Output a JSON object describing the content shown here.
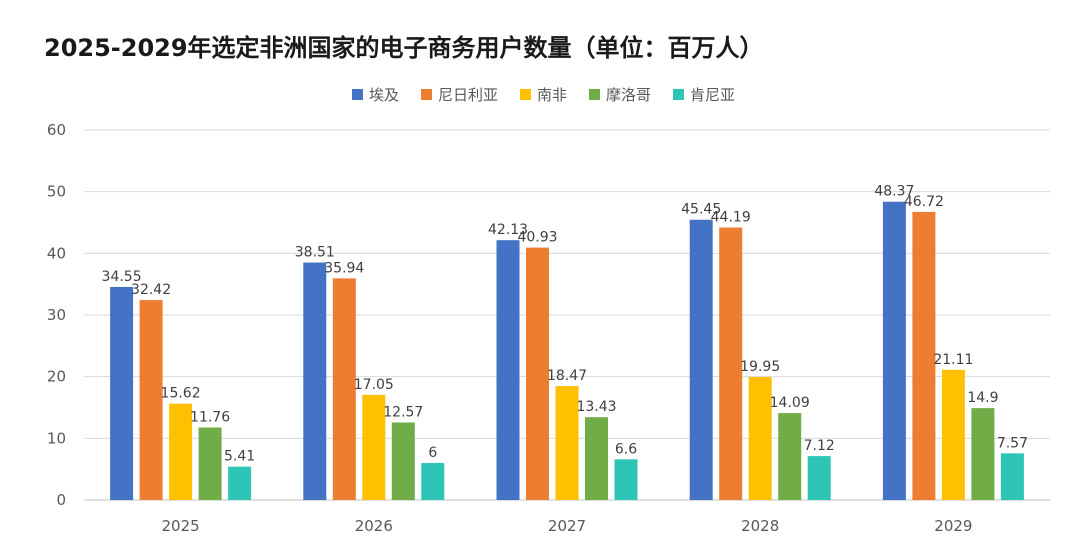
{
  "chart_data": {
    "type": "bar",
    "title": "2025-2029年选定非洲国家的电子商务用户数量（单位：百万人）",
    "categories": [
      "2025",
      "2026",
      "2027",
      "2028",
      "2029"
    ],
    "series": [
      {
        "name": "埃及",
        "color": "#4472C4",
        "values": [
          34.55,
          38.51,
          42.13,
          45.45,
          48.37
        ]
      },
      {
        "name": "尼日利亚",
        "color": "#ED7D31",
        "values": [
          32.42,
          35.94,
          40.93,
          44.19,
          46.72
        ]
      },
      {
        "name": "南非",
        "color": "#FFC000",
        "values": [
          15.62,
          17.05,
          18.47,
          19.95,
          21.11
        ]
      },
      {
        "name": "摩洛哥",
        "color": "#70AD47",
        "values": [
          11.76,
          12.57,
          13.43,
          14.09,
          14.9
        ]
      },
      {
        "name": "肯尼亚",
        "color": "#2EC4B6",
        "values": [
          5.41,
          6,
          6.6,
          7.12,
          7.57
        ]
      }
    ],
    "ylim": [
      0,
      60
    ],
    "yticks": [
      "0",
      "10",
      "20",
      "30",
      "40",
      "50",
      "60"
    ],
    "grid": true,
    "legend_position": "top"
  }
}
